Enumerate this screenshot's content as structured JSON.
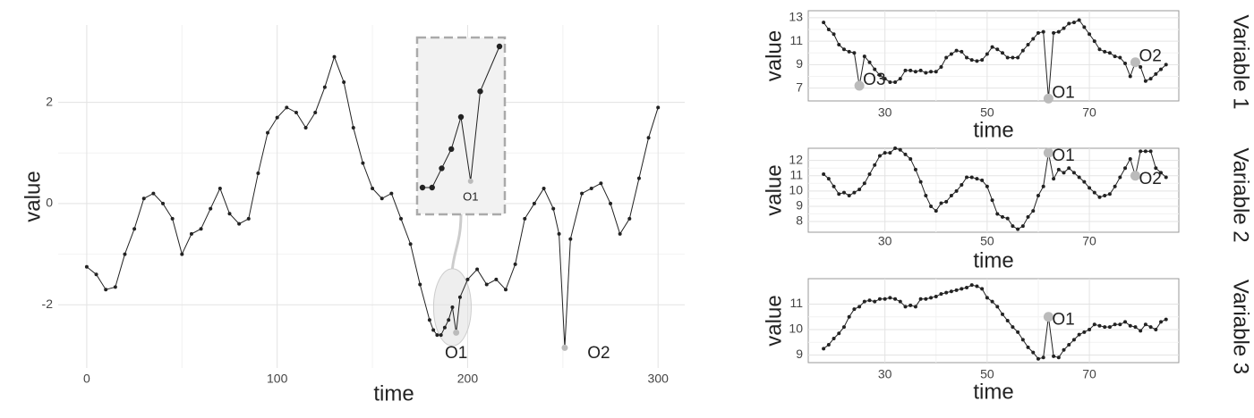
{
  "chart_data": [
    {
      "type": "line",
      "x_label": "time",
      "y_label": "value",
      "xlim": [
        -15,
        314
      ],
      "ylim": [
        -3.25,
        3.53
      ],
      "xticks": [
        0,
        100,
        200,
        300
      ],
      "yticks": [
        -2,
        0,
        2
      ],
      "x": [
        0,
        5,
        10,
        15,
        20,
        25,
        30,
        35,
        40,
        45,
        50,
        55,
        60,
        65,
        70,
        75,
        80,
        85,
        90,
        95,
        100,
        105,
        110,
        115,
        120,
        125,
        130,
        135,
        140,
        145,
        150,
        155,
        160,
        165,
        170,
        175,
        180,
        182,
        184,
        186,
        188,
        190,
        192,
        194,
        196,
        200,
        205,
        210,
        215,
        220,
        225,
        230,
        235,
        240,
        245,
        248,
        251,
        254,
        260,
        265,
        270,
        275,
        280,
        285,
        290,
        295,
        300
      ],
      "values": [
        -1.25,
        -1.4,
        -1.7,
        -1.65,
        -1.0,
        -0.5,
        0.1,
        0.2,
        0.0,
        -0.3,
        -1.0,
        -0.6,
        -0.5,
        -0.1,
        0.3,
        -0.2,
        -0.4,
        -0.3,
        0.6,
        1.4,
        1.7,
        1.9,
        1.8,
        1.5,
        1.8,
        2.3,
        2.9,
        2.4,
        1.5,
        0.8,
        0.3,
        0.1,
        0.2,
        -0.3,
        -0.8,
        -1.6,
        -2.3,
        -2.5,
        -2.6,
        -2.6,
        -2.45,
        -2.3,
        -2.05,
        -2.55,
        -1.85,
        -1.5,
        -1.3,
        -1.6,
        -1.5,
        -1.7,
        -1.2,
        -0.3,
        0.0,
        0.3,
        -0.1,
        -0.6,
        -2.85,
        -0.7,
        0.2,
        0.3,
        0.4,
        0.0,
        -0.6,
        -0.3,
        0.5,
        1.3,
        1.9
      ],
      "color": "#222222",
      "outliers": {
        "x": [
          194,
          251
        ],
        "values": [
          -2.55,
          -2.85
        ],
        "labels": [
          "O1",
          "O2"
        ],
        "color": "#bbbbbb"
      },
      "inset": {
        "xlim": [
          184,
          200
        ],
        "label": "O1"
      }
    },
    {
      "type": "line",
      "x_label": "time",
      "y_label": "value",
      "strip": "Variable 1",
      "xlim": [
        15,
        87.5
      ],
      "ylim": [
        5.9,
        13.6
      ],
      "xticks": [
        30,
        50,
        70
      ],
      "yticks": [
        7,
        9,
        11,
        13
      ],
      "x": [
        18,
        19,
        20,
        21,
        22,
        23,
        24,
        25,
        26,
        27,
        28,
        29,
        30,
        31,
        32,
        33,
        34,
        35,
        36,
        37,
        38,
        39,
        40,
        41,
        42,
        43,
        44,
        45,
        46,
        47,
        48,
        49,
        50,
        51,
        52,
        53,
        54,
        55,
        56,
        57,
        58,
        59,
        60,
        61,
        62,
        63,
        64,
        65,
        66,
        67,
        68,
        69,
        70,
        71,
        72,
        73,
        74,
        75,
        76,
        77,
        78,
        79,
        80,
        81,
        82,
        83,
        84,
        85
      ],
      "values": [
        12.6,
        12.0,
        11.6,
        10.7,
        10.3,
        10.1,
        10.0,
        7.2,
        9.7,
        9.2,
        8.6,
        8.1,
        7.8,
        7.5,
        7.5,
        7.8,
        8.5,
        8.5,
        8.4,
        8.5,
        8.3,
        8.4,
        8.4,
        8.8,
        9.6,
        9.9,
        10.2,
        10.1,
        9.6,
        9.4,
        9.3,
        9.4,
        9.9,
        10.5,
        10.3,
        10.0,
        9.6,
        9.6,
        9.6,
        10.2,
        10.7,
        11.2,
        11.7,
        11.8,
        6.1,
        11.7,
        11.8,
        12.1,
        12.5,
        12.6,
        12.8,
        12.2,
        11.6,
        11.0,
        10.3,
        10.1,
        10.0,
        9.7,
        9.6,
        9.1,
        8.0,
        9.2,
        8.8,
        7.6,
        7.8,
        8.2,
        8.6,
        9.0
      ],
      "color": "#222222",
      "outliers": {
        "x": [
          25,
          62,
          79
        ],
        "values": [
          7.2,
          6.1,
          9.2
        ],
        "labels": [
          "O3",
          "O1",
          "O2"
        ],
        "color": "#bbbbbb"
      }
    },
    {
      "type": "line",
      "x_label": "time",
      "y_label": "value",
      "strip": "Variable 2",
      "xlim": [
        15,
        87.5
      ],
      "ylim": [
        7.3,
        12.8
      ],
      "xticks": [
        30,
        50,
        70
      ],
      "yticks": [
        8,
        9,
        10,
        11,
        12
      ],
      "x": [
        18,
        19,
        20,
        21,
        22,
        23,
        24,
        25,
        26,
        27,
        28,
        29,
        30,
        31,
        32,
        33,
        34,
        35,
        36,
        37,
        38,
        39,
        40,
        41,
        42,
        43,
        44,
        45,
        46,
        47,
        48,
        49,
        50,
        51,
        52,
        53,
        54,
        55,
        56,
        57,
        58,
        59,
        60,
        61,
        62,
        63,
        64,
        65,
        66,
        67,
        68,
        69,
        70,
        71,
        72,
        73,
        74,
        75,
        76,
        77,
        78,
        79,
        80,
        81,
        82,
        83,
        84,
        85
      ],
      "values": [
        11.1,
        10.8,
        10.3,
        9.8,
        9.9,
        9.7,
        9.9,
        10.1,
        10.5,
        11.1,
        11.7,
        12.3,
        12.5,
        12.5,
        12.8,
        12.7,
        12.4,
        12.1,
        11.4,
        10.6,
        9.7,
        9.0,
        8.7,
        9.2,
        9.3,
        9.7,
        10.0,
        10.4,
        10.9,
        10.9,
        10.8,
        10.7,
        10.3,
        9.4,
        8.5,
        8.3,
        8.2,
        7.7,
        7.5,
        7.7,
        8.3,
        8.7,
        9.7,
        10.3,
        12.5,
        10.8,
        11.4,
        11.2,
        11.5,
        11.2,
        10.9,
        10.6,
        10.2,
        9.9,
        9.6,
        9.7,
        9.8,
        10.3,
        10.9,
        11.5,
        12.1,
        11.0,
        12.6,
        12.6,
        12.6,
        11.5,
        11.2,
        10.9
      ],
      "color": "#222222",
      "outliers": {
        "x": [
          62,
          79
        ],
        "values": [
          12.5,
          11.0
        ],
        "labels": [
          "O1",
          "O2"
        ],
        "color": "#bbbbbb"
      }
    },
    {
      "type": "line",
      "x_label": "time",
      "y_label": "value",
      "strip": "Variable 3",
      "xlim": [
        15,
        87.5
      ],
      "ylim": [
        8.7,
        12.0
      ],
      "xticks": [
        30,
        50,
        70
      ],
      "yticks": [
        9,
        10,
        11
      ],
      "x": [
        18,
        19,
        20,
        21,
        22,
        23,
        24,
        25,
        26,
        27,
        28,
        29,
        30,
        31,
        32,
        33,
        34,
        35,
        36,
        37,
        38,
        39,
        40,
        41,
        42,
        43,
        44,
        45,
        46,
        47,
        48,
        49,
        50,
        51,
        52,
        53,
        54,
        55,
        56,
        57,
        58,
        59,
        60,
        61,
        62,
        63,
        64,
        65,
        66,
        67,
        68,
        69,
        70,
        71,
        72,
        73,
        74,
        75,
        76,
        77,
        78,
        79,
        80,
        81,
        82,
        83,
        84,
        85
      ],
      "values": [
        9.25,
        9.4,
        9.65,
        9.85,
        10.1,
        10.5,
        10.8,
        10.9,
        11.1,
        11.15,
        11.1,
        11.2,
        11.2,
        11.25,
        11.2,
        11.1,
        10.9,
        10.95,
        10.9,
        11.2,
        11.2,
        11.25,
        11.3,
        11.4,
        11.45,
        11.5,
        11.55,
        11.6,
        11.65,
        11.75,
        11.7,
        11.6,
        11.25,
        11.1,
        10.9,
        10.6,
        10.35,
        10.1,
        9.9,
        9.6,
        9.3,
        9.1,
        8.85,
        8.9,
        10.5,
        8.95,
        8.9,
        9.2,
        9.4,
        9.6,
        9.8,
        9.9,
        10.0,
        10.2,
        10.15,
        10.1,
        10.1,
        10.2,
        10.2,
        10.3,
        10.15,
        10.1,
        9.95,
        10.2,
        10.1,
        10.0,
        10.3,
        10.4
      ],
      "color": "#222222",
      "outliers": {
        "x": [
          62
        ],
        "values": [
          10.5
        ],
        "labels": [
          "O1"
        ],
        "color": "#bbbbbb"
      }
    }
  ]
}
